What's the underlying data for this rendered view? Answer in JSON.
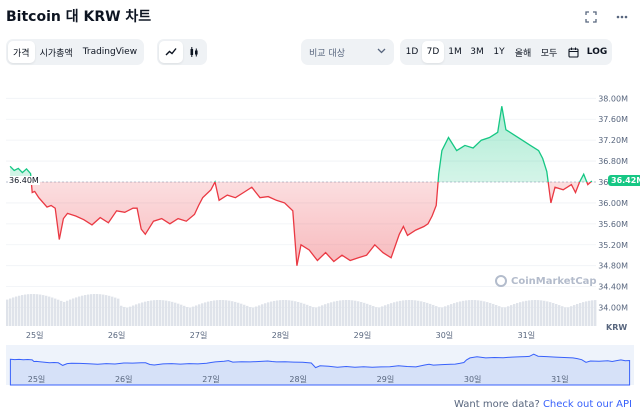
{
  "header": {
    "title": "Bitcoin 대 KRW 차트"
  },
  "icons": {
    "fullscreen": "fullscreen-icon",
    "more": "more-icon"
  },
  "view_tabs": [
    {
      "label": "가격",
      "active": true
    },
    {
      "label": "시가총액",
      "active": false
    },
    {
      "label": "TradingView",
      "active": false
    }
  ],
  "chart_type_toggle": [
    {
      "icon": "line-chart-icon",
      "active": true
    },
    {
      "icon": "candlestick-icon",
      "active": false
    }
  ],
  "compare": {
    "label": "비교 대상"
  },
  "time_ranges": [
    {
      "label": "1D",
      "active": false
    },
    {
      "label": "7D",
      "active": true
    },
    {
      "label": "1M",
      "active": false
    },
    {
      "label": "3M",
      "active": false
    },
    {
      "label": "1Y",
      "active": false
    },
    {
      "label": "올해",
      "active": false
    },
    {
      "label": "모두",
      "active": false
    }
  ],
  "log_label": "LOG",
  "footer": {
    "text": "Want more data? ",
    "link": "Check out our API"
  },
  "watermark": "CoinMarketCap",
  "colors": {
    "up": "#16c784",
    "down": "#ea3943",
    "accent": "#3861fb"
  },
  "chart_data": {
    "type": "area",
    "title": "",
    "xlabel": "",
    "ylabel": "",
    "y_unit": "KRW",
    "ylim": [
      33.8,
      38.35
    ],
    "y_ticks": [
      "38.00M",
      "37.60M",
      "37.20M",
      "36.80M",
      "36.40M",
      "36.00M",
      "35.60M",
      "35.20M",
      "34.80M",
      "34.40M",
      "34.00M"
    ],
    "y_tick_values": [
      38.0,
      37.6,
      37.2,
      36.8,
      36.4,
      36.0,
      35.6,
      35.2,
      34.8,
      34.4,
      34.0
    ],
    "x_ticks": [
      "25일",
      "26일",
      "27일",
      "28일",
      "29일",
      "30일",
      "31일"
    ],
    "x_tick_positions": [
      0.35,
      1.35,
      2.35,
      3.35,
      4.35,
      5.35,
      6.35
    ],
    "x_range": [
      0,
      7.2
    ],
    "baseline": {
      "label": "36.40M",
      "value": 36.4
    },
    "current_price": {
      "label": "36.42M",
      "value": 36.42
    },
    "series": [
      {
        "points": [
          [
            0.05,
            36.7
          ],
          [
            0.1,
            36.62
          ],
          [
            0.15,
            36.66
          ],
          [
            0.2,
            36.58
          ],
          [
            0.25,
            36.65
          ],
          [
            0.3,
            36.56
          ],
          [
            0.32,
            36.2
          ],
          [
            0.35,
            36.22
          ],
          [
            0.4,
            36.1
          ],
          [
            0.5,
            35.92
          ],
          [
            0.55,
            35.95
          ],
          [
            0.6,
            35.9
          ],
          [
            0.65,
            35.3
          ],
          [
            0.7,
            35.7
          ],
          [
            0.75,
            35.8
          ],
          [
            0.85,
            35.75
          ],
          [
            0.95,
            35.68
          ],
          [
            1.05,
            35.58
          ],
          [
            1.15,
            35.72
          ],
          [
            1.25,
            35.62
          ],
          [
            1.35,
            35.85
          ],
          [
            1.45,
            35.82
          ],
          [
            1.55,
            35.9
          ],
          [
            1.6,
            35.9
          ],
          [
            1.65,
            35.5
          ],
          [
            1.7,
            35.4
          ],
          [
            1.8,
            35.65
          ],
          [
            1.9,
            35.7
          ],
          [
            2.0,
            35.6
          ],
          [
            2.1,
            35.7
          ],
          [
            2.2,
            35.65
          ],
          [
            2.3,
            35.78
          ],
          [
            2.35,
            35.95
          ],
          [
            2.4,
            36.1
          ],
          [
            2.5,
            36.25
          ],
          [
            2.55,
            36.4
          ],
          [
            2.6,
            36.05
          ],
          [
            2.7,
            36.15
          ],
          [
            2.8,
            36.1
          ],
          [
            2.9,
            36.2
          ],
          [
            3.0,
            36.3
          ],
          [
            3.05,
            36.2
          ],
          [
            3.1,
            36.1
          ],
          [
            3.2,
            36.12
          ],
          [
            3.3,
            36.05
          ],
          [
            3.4,
            36.0
          ],
          [
            3.5,
            35.85
          ],
          [
            3.55,
            34.8
          ],
          [
            3.6,
            35.2
          ],
          [
            3.7,
            35.1
          ],
          [
            3.8,
            34.9
          ],
          [
            3.9,
            35.05
          ],
          [
            4.0,
            34.88
          ],
          [
            4.1,
            35.0
          ],
          [
            4.2,
            34.9
          ],
          [
            4.3,
            34.95
          ],
          [
            4.4,
            35.0
          ],
          [
            4.5,
            35.2
          ],
          [
            4.6,
            35.05
          ],
          [
            4.7,
            34.95
          ],
          [
            4.8,
            35.4
          ],
          [
            4.85,
            35.55
          ],
          [
            4.9,
            35.38
          ],
          [
            5.0,
            35.48
          ],
          [
            5.1,
            35.55
          ],
          [
            5.15,
            35.6
          ],
          [
            5.2,
            35.75
          ],
          [
            5.25,
            35.95
          ],
          [
            5.28,
            36.55
          ],
          [
            5.32,
            37.0
          ],
          [
            5.4,
            37.25
          ],
          [
            5.5,
            37.0
          ],
          [
            5.6,
            37.1
          ],
          [
            5.7,
            37.05
          ],
          [
            5.8,
            37.2
          ],
          [
            5.9,
            37.25
          ],
          [
            5.95,
            37.3
          ],
          [
            6.0,
            37.35
          ],
          [
            6.05,
            37.85
          ],
          [
            6.1,
            37.4
          ],
          [
            6.2,
            37.3
          ],
          [
            6.3,
            37.2
          ],
          [
            6.4,
            37.1
          ],
          [
            6.5,
            37.0
          ],
          [
            6.55,
            36.85
          ],
          [
            6.6,
            36.6
          ],
          [
            6.65,
            36.0
          ],
          [
            6.7,
            36.3
          ],
          [
            6.8,
            36.25
          ],
          [
            6.9,
            36.35
          ],
          [
            6.95,
            36.2
          ],
          [
            7.0,
            36.4
          ],
          [
            7.05,
            36.55
          ],
          [
            7.1,
            36.35
          ],
          [
            7.15,
            36.42
          ]
        ]
      }
    ]
  }
}
